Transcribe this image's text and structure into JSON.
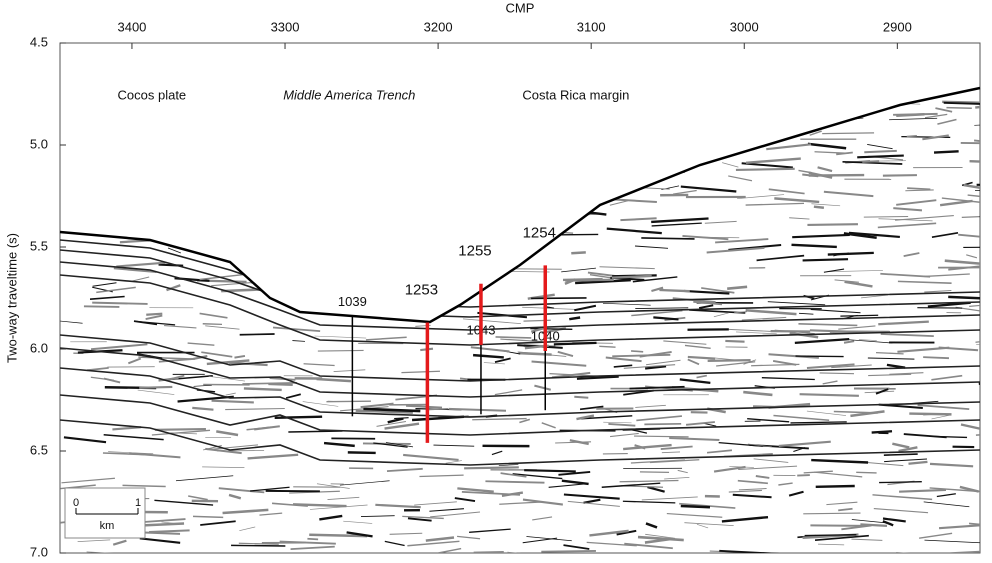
{
  "chart_data": {
    "type": "section",
    "x_label": "CMP",
    "y_label": "Two-way traveltime (s)",
    "xlim": [
      3447,
      2846
    ],
    "xticks": [
      3400,
      3300,
      3200,
      3100,
      3000,
      2900
    ],
    "ylim": [
      4.5,
      7.0
    ],
    "yticks": [
      {
        "value": 4.5,
        "label": "4.5"
      },
      {
        "value": 5.0,
        "label": "5.0"
      },
      {
        "value": 5.5,
        "label": "5.5"
      },
      {
        "value": 6.0,
        "label": "6.0"
      },
      {
        "value": 6.5,
        "label": "6.5"
      },
      {
        "value": 7.0,
        "label": "7.0"
      }
    ],
    "annotations": [
      {
        "text": "Cocos plate",
        "x": 3387,
        "y": 4.76,
        "italic": false
      },
      {
        "text": "Middle America Trench",
        "x": 3258,
        "y": 4.76,
        "italic": true
      },
      {
        "text": "Costa Rica margin",
        "x": 3110,
        "y": 4.76,
        "italic": false
      }
    ],
    "sites": [
      {
        "name": "1039",
        "color": "#000000",
        "x": 3256,
        "y": [
          5.84,
          6.33
        ]
      },
      {
        "name": "1253",
        "color": "#e41a1c",
        "x": 3207,
        "y": [
          5.87,
          6.46
        ]
      },
      {
        "name": "1043",
        "color": "#000000",
        "x": 3172,
        "y": [
          5.98,
          6.32
        ]
      },
      {
        "name": "1255",
        "color": "#e41a1c",
        "x": 3172,
        "y": [
          5.68,
          5.98
        ]
      },
      {
        "name": "1040",
        "color": "#000000",
        "x": 3130,
        "y": [
          6.01,
          6.3
        ]
      },
      {
        "name": "1254",
        "color": "#e41a1c",
        "x": 3130,
        "y": [
          5.59,
          6.01
        ]
      }
    ],
    "scale_bar": {
      "start": "0",
      "end": "1",
      "unit": "km"
    }
  }
}
